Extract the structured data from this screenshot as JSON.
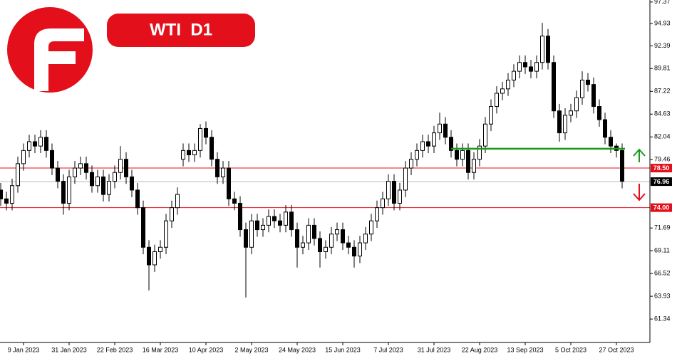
{
  "chart_data": {
    "type": "candlestick",
    "title": "WTI  D1",
    "categories": [
      null,
      null,
      null,
      null,
      "9 Jan 2023",
      null,
      null,
      null,
      null,
      null,
      null,
      null,
      "31 Jan 2023",
      null,
      null,
      null,
      null,
      null,
      null,
      null,
      "22 Feb 2023",
      null,
      null,
      null,
      null,
      null,
      null,
      null,
      "16 Mar 2023",
      null,
      null,
      null,
      null,
      null,
      null,
      null,
      "10 Apr 2023",
      null,
      null,
      null,
      null,
      null,
      null,
      null,
      "2 May 2023",
      null,
      null,
      null,
      null,
      null,
      null,
      null,
      "24 May 2023",
      null,
      null,
      null,
      null,
      null,
      null,
      null,
      "15 Jun 2023",
      null,
      null,
      null,
      null,
      null,
      null,
      null,
      "7 Jul 2023",
      null,
      null,
      null,
      null,
      null,
      null,
      null,
      "31 Jul 2023",
      null,
      null,
      null,
      null,
      null,
      null,
      null,
      "22 Aug 2023",
      null,
      null,
      null,
      null,
      null,
      null,
      null,
      "13 Sep 2023",
      null,
      null,
      null,
      null,
      null,
      null,
      null,
      "5 Oct 2023",
      null,
      null,
      null,
      null,
      null,
      null,
      null,
      "27 Oct 2023",
      null
    ],
    "open": [
      76.0,
      75.0,
      74.5,
      76.5,
      79.0,
      80.5,
      81.5,
      81.0,
      82.0,
      80.5,
      78.5,
      77.0,
      74.5,
      77.5,
      78.5,
      79.0,
      78.0,
      76.5,
      77.5,
      75.5,
      77.0,
      78.0,
      79.5,
      77.5,
      76.0,
      74.0,
      69.5,
      67.5,
      69.0,
      69.5,
      72.5,
      74.0,
      79.5,
      80.5,
      80.0,
      80.5,
      83.0,
      82.0,
      79.5,
      77.5,
      78.5,
      75.0,
      74.5,
      71.5,
      69.5,
      72.5,
      71.5,
      72.0,
      73.0,
      72.5,
      72.0,
      73.5,
      71.5,
      69.5,
      70.0,
      72.0,
      70.5,
      69.0,
      69.5,
      71.0,
      71.5,
      70.0,
      69.5,
      68.5,
      70.0,
      71.0,
      72.5,
      74.0,
      75.0,
      77.0,
      74.5,
      76.0,
      78.5,
      79.5,
      80.5,
      81.5,
      81.0,
      82.5,
      83.5,
      82.0,
      80.5,
      79.5,
      80.5,
      78.0,
      79.5,
      81.0,
      83.5,
      85.5,
      87.0,
      87.5,
      88.5,
      89.5,
      90.5,
      90.0,
      89.5,
      90.5,
      93.5,
      90.5,
      85.0,
      82.5,
      84.5,
      85.0,
      86.5,
      88.5,
      88.0,
      85.5,
      84.0,
      82.0,
      81.0,
      80.5
    ],
    "high": [
      76.8,
      75.8,
      77.3,
      79.8,
      81.3,
      82.3,
      82.3,
      82.8,
      82.8,
      81.3,
      79.3,
      77.8,
      78.3,
      79.3,
      79.8,
      79.8,
      78.8,
      78.3,
      78.3,
      77.8,
      78.8,
      81.0,
      80.3,
      78.3,
      76.8,
      74.8,
      70.3,
      69.8,
      70.3,
      73.3,
      74.8,
      76.3,
      81.3,
      81.3,
      81.3,
      83.5,
      83.8,
      82.8,
      80.3,
      79.3,
      79.3,
      75.8,
      75.3,
      72.3,
      73.3,
      73.3,
      72.8,
      73.8,
      73.8,
      73.3,
      74.3,
      74.3,
      72.3,
      70.8,
      72.8,
      72.8,
      71.3,
      70.3,
      71.8,
      72.3,
      72.3,
      70.8,
      70.3,
      70.8,
      71.8,
      73.3,
      74.8,
      75.8,
      77.8,
      77.8,
      76.8,
      79.3,
      80.3,
      81.3,
      82.3,
      82.3,
      83.3,
      84.8,
      84.3,
      82.8,
      81.3,
      81.3,
      81.3,
      80.3,
      81.8,
      84.3,
      86.3,
      87.8,
      88.3,
      89.3,
      90.3,
      91.3,
      91.3,
      90.8,
      91.3,
      95.0,
      94.3,
      91.3,
      85.8,
      85.3,
      85.8,
      87.3,
      89.5,
      89.3,
      88.8,
      86.3,
      84.8,
      82.8,
      81.3,
      81.3
    ],
    "low": [
      74.2,
      73.7,
      73.7,
      75.7,
      78.2,
      79.7,
      80.2,
      80.2,
      79.7,
      77.7,
      76.2,
      73.2,
      73.7,
      76.7,
      77.7,
      77.2,
      75.7,
      75.7,
      74.7,
      74.7,
      76.2,
      77.2,
      76.7,
      75.2,
      73.2,
      68.7,
      64.6,
      66.7,
      68.2,
      68.7,
      71.7,
      73.2,
      78.7,
      79.2,
      79.2,
      79.7,
      81.2,
      78.7,
      76.7,
      76.7,
      74.2,
      73.7,
      70.7,
      63.8,
      68.7,
      70.7,
      70.7,
      71.2,
      71.7,
      71.2,
      71.2,
      70.7,
      67.2,
      68.7,
      69.2,
      69.7,
      67.2,
      68.2,
      68.7,
      70.2,
      69.2,
      68.7,
      67.2,
      67.7,
      69.2,
      70.2,
      71.7,
      73.2,
      74.2,
      73.7,
      73.7,
      75.2,
      77.7,
      78.7,
      79.7,
      80.2,
      80.2,
      81.7,
      81.2,
      79.7,
      78.7,
      78.7,
      77.2,
      77.2,
      78.7,
      80.2,
      82.7,
      84.7,
      86.2,
      86.7,
      87.7,
      88.7,
      89.2,
      88.7,
      88.7,
      89.7,
      89.7,
      84.2,
      81.5,
      81.7,
      83.7,
      84.2,
      85.7,
      87.2,
      84.7,
      83.2,
      81.2,
      80.2,
      79.7,
      76.2
    ],
    "close": [
      75.0,
      74.5,
      76.5,
      79.0,
      80.5,
      81.5,
      81.0,
      82.0,
      80.5,
      78.5,
      77.0,
      74.5,
      77.5,
      78.5,
      79.0,
      78.0,
      76.5,
      77.5,
      75.5,
      77.0,
      78.0,
      79.5,
      77.5,
      76.0,
      74.0,
      69.5,
      67.5,
      69.0,
      69.5,
      72.5,
      74.0,
      75.5,
      80.5,
      80.0,
      80.5,
      83.0,
      82.0,
      79.5,
      77.5,
      78.5,
      75.0,
      74.5,
      71.5,
      69.5,
      72.5,
      71.5,
      72.0,
      73.0,
      72.5,
      72.0,
      73.5,
      71.5,
      69.5,
      70.0,
      72.0,
      70.5,
      69.0,
      69.5,
      71.0,
      71.5,
      70.0,
      69.5,
      68.5,
      70.0,
      71.0,
      72.5,
      74.0,
      75.0,
      77.0,
      74.5,
      76.0,
      78.5,
      79.5,
      80.5,
      81.5,
      81.0,
      82.5,
      83.5,
      82.0,
      80.5,
      79.5,
      80.5,
      78.0,
      79.5,
      81.0,
      83.5,
      85.5,
      87.0,
      87.5,
      88.5,
      89.5,
      90.5,
      90.0,
      89.5,
      90.5,
      93.5,
      90.5,
      85.0,
      82.5,
      84.5,
      85.0,
      86.5,
      88.5,
      88.0,
      85.5,
      84.0,
      82.0,
      81.0,
      80.5,
      77.0
    ],
    "ylim": [
      58.68,
      97.6
    ],
    "yticks": [
      97.37,
      94.93,
      92.39,
      89.81,
      87.22,
      84.63,
      82.04,
      79.46,
      71.69,
      69.11,
      66.52,
      63.93,
      61.34
    ],
    "levels": [
      {
        "value": 78.5,
        "label": "78.50",
        "color": "#e3101b"
      },
      {
        "value": 76.96,
        "label": "76.96",
        "color": "#000000"
      },
      {
        "value": 74.0,
        "label": "74.00",
        "color": "#e3101b"
      }
    ],
    "trend_level": {
      "value": 80.7,
      "color": "#1a9a1a"
    },
    "up_color": "#ffffff",
    "down_color": "#000000"
  }
}
